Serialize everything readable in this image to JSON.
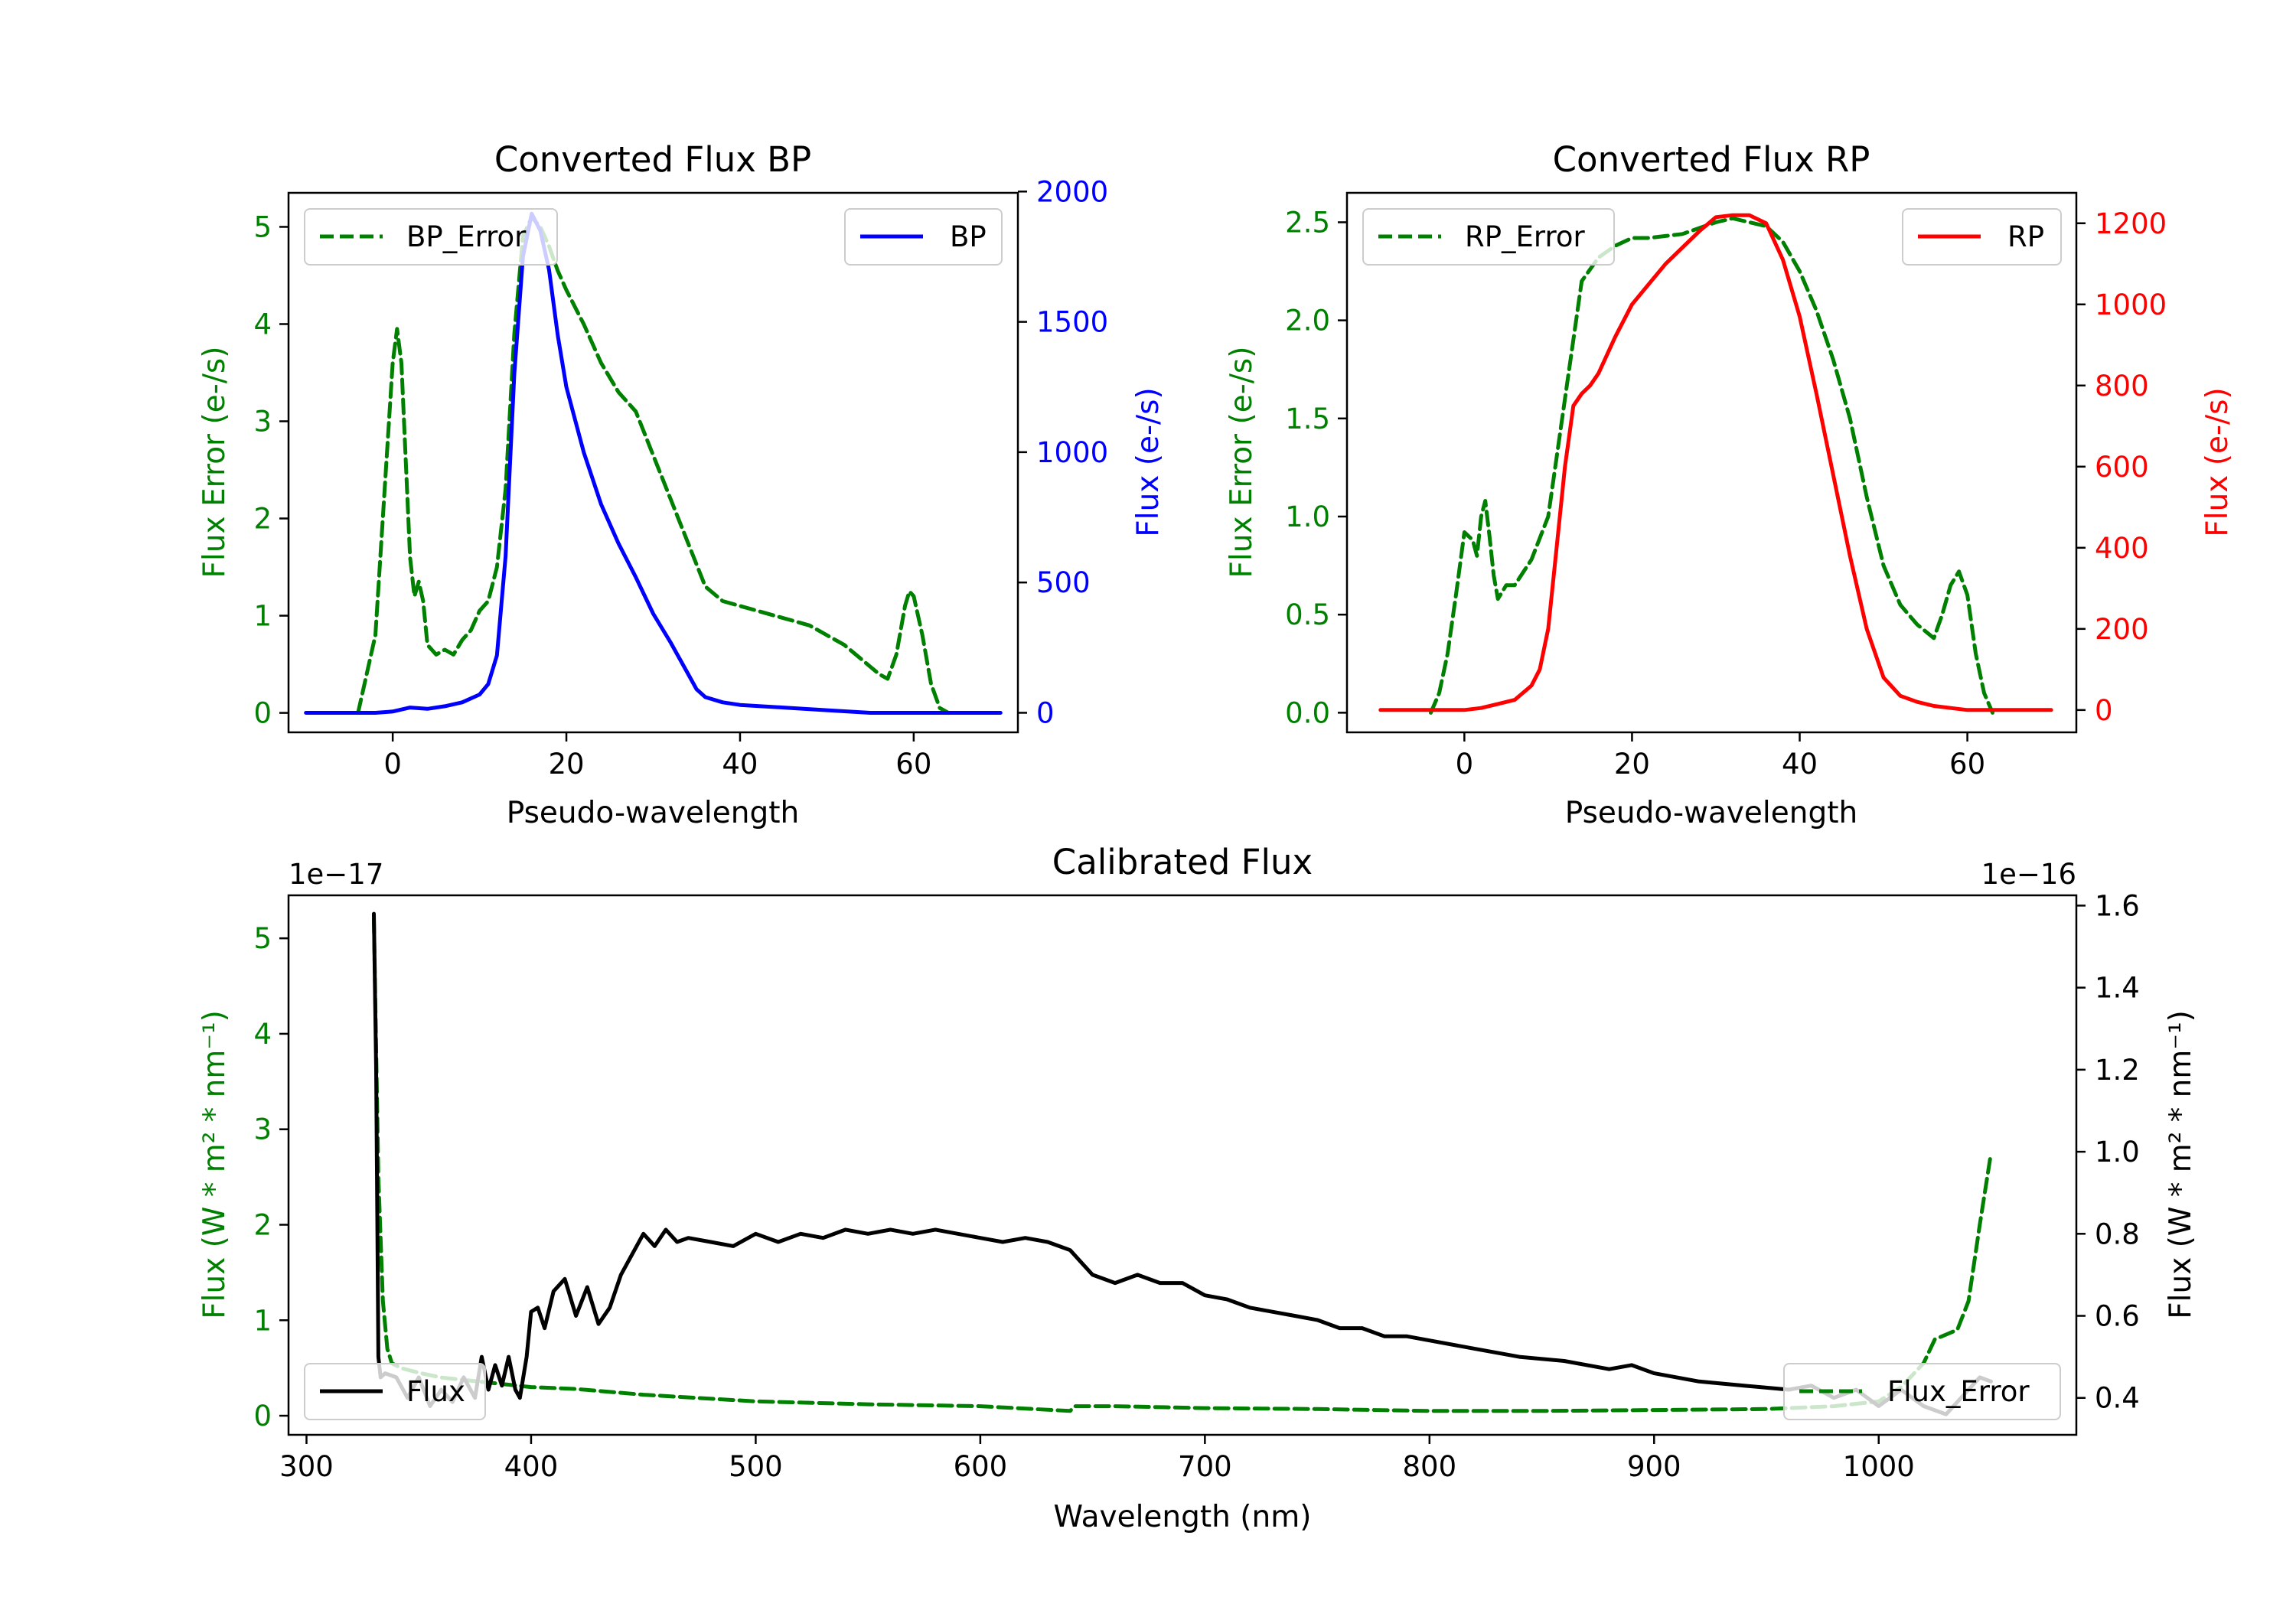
{
  "chart_data": [
    {
      "type": "line",
      "title": "Converted Flux BP",
      "xlabel": "Pseudo-wavelength",
      "ylabel_left": "Flux Error (e-/s)",
      "ylabel_right": "Flux (e-/s)",
      "xlim": [
        -12,
        72
      ],
      "ylim_left": [
        -0.2,
        5.35
      ],
      "ylim_right": [
        -75,
        1995
      ],
      "xticks": [
        "0",
        "20",
        "40",
        "60"
      ],
      "yticks_left": [
        "0",
        "1",
        "2",
        "3",
        "4",
        "5"
      ],
      "yticks_right": [
        "0",
        "500",
        "1000",
        "1500",
        "2000"
      ],
      "colors": {
        "left_axis": "#008000",
        "right_axis": "#0000ff"
      },
      "series": [
        {
          "name": "BP_Error",
          "axis": "left",
          "style": "dashed",
          "color": "#008000",
          "x": [
            -4,
            -2,
            -1,
            0,
            0.5,
            1,
            2,
            2.5,
            3,
            3.5,
            4,
            5,
            6,
            7,
            8,
            9,
            10,
            11,
            12,
            13,
            14,
            15,
            16,
            17,
            18,
            19,
            20,
            22,
            24,
            26,
            28,
            30,
            32,
            34,
            36,
            38,
            40,
            42,
            44,
            46,
            48,
            50,
            52,
            54,
            56,
            57,
            58,
            59,
            59.5,
            60,
            61,
            62,
            63,
            64
          ],
          "y": [
            0,
            0.8,
            2.2,
            3.6,
            3.95,
            3.6,
            1.6,
            1.2,
            1.35,
            1.15,
            0.7,
            0.6,
            0.65,
            0.6,
            0.75,
            0.85,
            1.05,
            1.15,
            1.5,
            2.3,
            3.9,
            4.9,
            5.1,
            5.0,
            4.8,
            4.55,
            4.35,
            4.0,
            3.6,
            3.3,
            3.1,
            2.65,
            2.2,
            1.75,
            1.3,
            1.15,
            1.1,
            1.05,
            1.0,
            0.95,
            0.9,
            0.8,
            0.7,
            0.55,
            0.4,
            0.35,
            0.6,
            1.1,
            1.25,
            1.2,
            0.8,
            0.3,
            0.05,
            0
          ]
        },
        {
          "name": "BP",
          "axis": "right",
          "style": "solid",
          "color": "#0000ff",
          "x": [
            -10,
            -6,
            -2,
            0,
            2,
            4,
            6,
            8,
            10,
            11,
            12,
            13,
            14,
            15,
            16,
            17,
            18,
            19,
            20,
            22,
            24,
            26,
            28,
            30,
            32,
            34,
            35,
            36,
            38,
            40,
            45,
            50,
            55,
            60,
            65,
            70
          ],
          "y": [
            0,
            0,
            0,
            5,
            20,
            15,
            25,
            40,
            70,
            110,
            220,
            600,
            1300,
            1750,
            1915,
            1850,
            1700,
            1450,
            1250,
            1000,
            800,
            650,
            520,
            380,
            270,
            150,
            90,
            60,
            40,
            30,
            20,
            10,
            0,
            0,
            0,
            0
          ]
        }
      ],
      "legend": [
        {
          "label": "BP_Error",
          "position": "upper-left"
        },
        {
          "label": "BP",
          "position": "upper-right"
        }
      ]
    },
    {
      "type": "line",
      "title": "Converted Flux RP",
      "xlabel": "Pseudo-wavelength",
      "ylabel_left": "Flux Error (e-/s)",
      "ylabel_right": "Flux (e-/s)",
      "xlim": [
        -14,
        73
      ],
      "ylim_left": [
        -0.1,
        2.65
      ],
      "ylim_right": [
        -55,
        1275
      ],
      "xticks": [
        "0",
        "20",
        "40",
        "60"
      ],
      "yticks_left": [
        "0.0",
        "0.5",
        "1.0",
        "1.5",
        "2.0",
        "2.5"
      ],
      "yticks_right": [
        "0",
        "200",
        "400",
        "600",
        "800",
        "1000",
        "1200"
      ],
      "colors": {
        "left_axis": "#008000",
        "right_axis": "#ff0000"
      },
      "series": [
        {
          "name": "RP_Error",
          "axis": "left",
          "style": "dashed",
          "color": "#008000",
          "x": [
            -4,
            -3,
            -2,
            -1,
            0,
            1,
            1.5,
            2,
            2.5,
            3,
            3.5,
            4,
            5,
            6,
            8,
            10,
            12,
            14,
            16,
            18,
            20,
            22,
            24,
            26,
            28,
            30,
            32,
            34,
            36,
            38,
            40,
            42,
            44,
            46,
            48,
            50,
            52,
            54,
            56,
            57,
            58,
            59,
            60,
            61,
            62,
            63
          ],
          "y": [
            0,
            0.1,
            0.3,
            0.6,
            0.92,
            0.88,
            0.8,
            1.0,
            1.08,
            0.9,
            0.7,
            0.58,
            0.65,
            0.65,
            0.78,
            1.0,
            1.6,
            2.2,
            2.32,
            2.38,
            2.42,
            2.42,
            2.43,
            2.44,
            2.47,
            2.5,
            2.52,
            2.5,
            2.48,
            2.4,
            2.25,
            2.05,
            1.8,
            1.5,
            1.1,
            0.75,
            0.55,
            0.45,
            0.38,
            0.5,
            0.65,
            0.72,
            0.6,
            0.3,
            0.1,
            0
          ]
        },
        {
          "name": "RP",
          "axis": "right",
          "style": "solid",
          "color": "#ff0000",
          "x": [
            -10,
            -5,
            0,
            2,
            4,
            6,
            8,
            9,
            10,
            11,
            12,
            13,
            14,
            15,
            16,
            18,
            20,
            22,
            24,
            26,
            28,
            30,
            32,
            34,
            36,
            38,
            40,
            42,
            44,
            46,
            48,
            50,
            52,
            54,
            56,
            58,
            60,
            65,
            70
          ],
          "y": [
            0,
            0,
            0,
            5,
            15,
            25,
            60,
            100,
            200,
            400,
            600,
            750,
            780,
            800,
            830,
            920,
            1000,
            1050,
            1100,
            1140,
            1180,
            1215,
            1220,
            1220,
            1200,
            1110,
            970,
            780,
            580,
            380,
            200,
            80,
            35,
            20,
            10,
            5,
            0,
            0,
            0
          ]
        }
      ],
      "legend": [
        {
          "label": "RP_Error",
          "position": "upper-left"
        },
        {
          "label": "RP",
          "position": "upper-right"
        }
      ]
    },
    {
      "type": "line",
      "title": "Calibrated Flux",
      "xlabel": "Wavelength (nm)",
      "ylabel_left": "Flux (W * m² * nm⁻¹)",
      "ylabel_right": "Flux (W * m² * nm⁻¹)",
      "offset_left": "1e−17",
      "offset_right": "1e−16",
      "xlim": [
        292,
        1088
      ],
      "ylim_left": [
        -0.2,
        5.45
      ],
      "ylim_right": [
        0.31,
        1.625
      ],
      "xticks": [
        "300",
        "400",
        "500",
        "600",
        "700",
        "800",
        "900",
        "1000"
      ],
      "yticks_left": [
        "0",
        "1",
        "2",
        "3",
        "4",
        "5"
      ],
      "yticks_right": [
        "0.4",
        "0.6",
        "0.8",
        "1.0",
        "1.2",
        "1.4",
        "1.6"
      ],
      "colors": {
        "left_axis": "#008000",
        "right_axis": "#000000"
      },
      "series": [
        {
          "name": "Flux_Error",
          "axis": "left",
          "style": "dashed",
          "color": "#008000",
          "x": [
            330,
            332,
            334,
            336,
            338,
            342,
            350,
            360,
            380,
            400,
            420,
            450,
            500,
            550,
            600,
            640,
            642,
            660,
            700,
            750,
            800,
            850,
            900,
            950,
            980,
            1000,
            1010,
            1020,
            1025,
            1030,
            1035,
            1040,
            1045,
            1050
          ],
          "y": [
            5.2,
            2.5,
            1.2,
            0.7,
            0.55,
            0.5,
            0.45,
            0.4,
            0.35,
            0.3,
            0.28,
            0.22,
            0.15,
            0.12,
            0.1,
            0.05,
            0.1,
            0.1,
            0.08,
            0.07,
            0.05,
            0.05,
            0.06,
            0.07,
            0.1,
            0.15,
            0.3,
            0.55,
            0.8,
            0.85,
            0.9,
            1.2,
            2.0,
            2.75
          ]
        },
        {
          "name": "Flux",
          "axis": "right",
          "style": "solid",
          "color": "#000000",
          "x": [
            330,
            331,
            332,
            333,
            335,
            340,
            345,
            350,
            355,
            360,
            365,
            370,
            375,
            378,
            381,
            384,
            387,
            390,
            393,
            395,
            398,
            400,
            403,
            406,
            410,
            415,
            420,
            425,
            430,
            435,
            440,
            445,
            450,
            455,
            460,
            465,
            470,
            480,
            490,
            500,
            510,
            520,
            530,
            540,
            550,
            560,
            570,
            580,
            590,
            600,
            610,
            620,
            630,
            640,
            645,
            650,
            660,
            670,
            680,
            690,
            700,
            710,
            720,
            730,
            740,
            750,
            760,
            770,
            780,
            790,
            800,
            820,
            840,
            860,
            880,
            890,
            900,
            920,
            940,
            960,
            970,
            980,
            990,
            1000,
            1010,
            1020,
            1030,
            1040,
            1045,
            1050
          ],
          "y": [
            1.58,
            1.2,
            0.5,
            0.45,
            0.46,
            0.45,
            0.4,
            0.45,
            0.38,
            0.42,
            0.39,
            0.45,
            0.4,
            0.5,
            0.42,
            0.48,
            0.43,
            0.5,
            0.42,
            0.4,
            0.5,
            0.61,
            0.62,
            0.57,
            0.66,
            0.69,
            0.6,
            0.67,
            0.58,
            0.62,
            0.7,
            0.75,
            0.8,
            0.77,
            0.81,
            0.78,
            0.79,
            0.78,
            0.77,
            0.8,
            0.78,
            0.8,
            0.79,
            0.81,
            0.8,
            0.81,
            0.8,
            0.81,
            0.8,
            0.79,
            0.78,
            0.79,
            0.78,
            0.76,
            0.73,
            0.7,
            0.68,
            0.7,
            0.68,
            0.68,
            0.65,
            0.64,
            0.62,
            0.61,
            0.6,
            0.59,
            0.57,
            0.57,
            0.55,
            0.55,
            0.54,
            0.52,
            0.5,
            0.49,
            0.47,
            0.48,
            0.46,
            0.44,
            0.43,
            0.42,
            0.43,
            0.4,
            0.42,
            0.38,
            0.42,
            0.38,
            0.36,
            0.42,
            0.45,
            0.44
          ]
        }
      ],
      "legend": [
        {
          "label": "Flux",
          "position": "lower-left"
        },
        {
          "label": "Flux_Error",
          "position": "lower-right"
        }
      ]
    }
  ]
}
